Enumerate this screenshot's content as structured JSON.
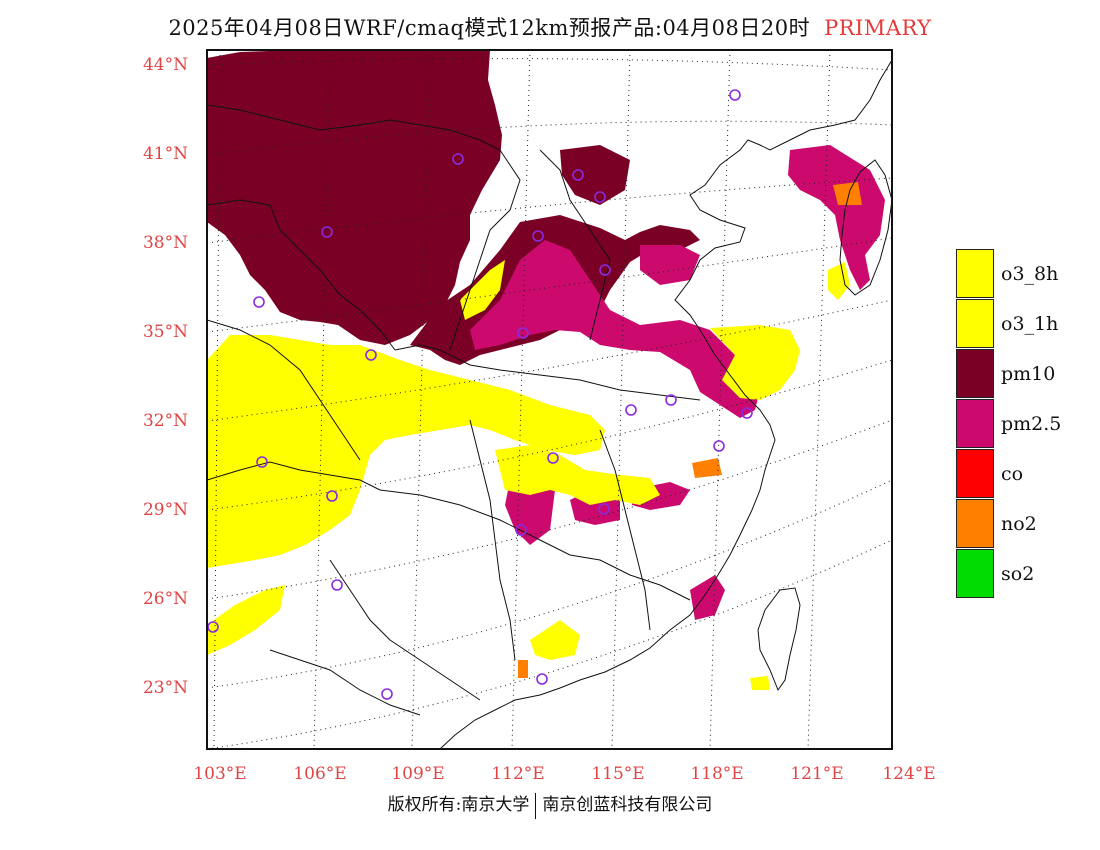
{
  "title": {
    "main": "2025年04月08日WRF/cmaq模式12km预报产品:04月08日20时",
    "tag": "PRIMARY",
    "tag_color": "#e8393a"
  },
  "map": {
    "lat_labels": [
      "44°N",
      "41°N",
      "38°N",
      "35°N",
      "32°N",
      "29°N",
      "26°N",
      "23°N"
    ],
    "lon_labels": [
      "103°E",
      "106°E",
      "109°E",
      "112°E",
      "115°E",
      "118°E",
      "121°E",
      "124°E"
    ],
    "label_color": "#e04545",
    "station_marker_color": "#8a2be2",
    "region_colors": {
      "pm10": "#7a0026",
      "pm2_5": "#cc0a6e",
      "o3": "#ffff00",
      "no2": "#ff7f00"
    }
  },
  "legend": [
    {
      "label": "o3_8h",
      "color": "#ffff00"
    },
    {
      "label": "o3_1h",
      "color": "#ffff00"
    },
    {
      "label": "pm10",
      "color": "#7a0026"
    },
    {
      "label": "pm2.5",
      "color": "#cc0a6e"
    },
    {
      "label": "co",
      "color": "#ff0000"
    },
    {
      "label": "no2",
      "color": "#ff7f00"
    },
    {
      "label": "so2",
      "color": "#00dd00"
    }
  ],
  "footer": {
    "left": "版权所有:南京大学",
    "right": "南京创蓝科技有限公司"
  }
}
